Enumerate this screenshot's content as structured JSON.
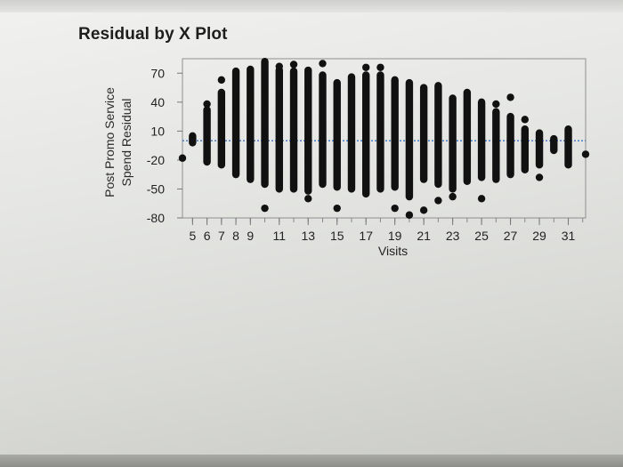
{
  "chart_data": {
    "type": "scatter",
    "title": "Residual by X Plot",
    "xlabel": "Visits",
    "ylabel_lines": [
      "Post Promo Service",
      "Spend Residual"
    ],
    "xlim": [
      4.3,
      32.2
    ],
    "ylim": [
      -80,
      85
    ],
    "x_tick_labels": [
      5,
      6,
      7,
      8,
      9,
      11,
      13,
      15,
      17,
      19,
      21,
      23,
      25,
      27,
      29,
      31
    ],
    "y_ticks": [
      70,
      40,
      10,
      -20,
      -50,
      -80
    ],
    "reference_line_y": 0,
    "reference_line_color": "#3b73c4",
    "point_color": "#111111",
    "columns": [
      {
        "x": 4.3,
        "min": -18,
        "max": -18,
        "outliers": []
      },
      {
        "x": 5,
        "min": -2,
        "max": 5,
        "outliers": []
      },
      {
        "x": 6,
        "min": -22,
        "max": 32,
        "outliers": [
          38
        ]
      },
      {
        "x": 7,
        "min": -25,
        "max": 50,
        "outliers": [
          63
        ]
      },
      {
        "x": 8,
        "min": -35,
        "max": 72,
        "outliers": []
      },
      {
        "x": 9,
        "min": -40,
        "max": 74,
        "outliers": []
      },
      {
        "x": 10,
        "min": -45,
        "max": 82,
        "outliers": [
          -70
        ]
      },
      {
        "x": 11,
        "min": -50,
        "max": 73,
        "outliers": [
          77
        ]
      },
      {
        "x": 12,
        "min": -50,
        "max": 72,
        "outliers": [
          79
        ]
      },
      {
        "x": 13,
        "min": -52,
        "max": 73,
        "outliers": [
          -60
        ]
      },
      {
        "x": 14,
        "min": -45,
        "max": 68,
        "outliers": [
          80
        ]
      },
      {
        "x": 15,
        "min": -48,
        "max": 60,
        "outliers": [
          -70
        ]
      },
      {
        "x": 16,
        "min": -50,
        "max": 66,
        "outliers": []
      },
      {
        "x": 17,
        "min": -55,
        "max": 68,
        "outliers": [
          76
        ]
      },
      {
        "x": 18,
        "min": -50,
        "max": 68,
        "outliers": [
          76
        ]
      },
      {
        "x": 19,
        "min": -48,
        "max": 63,
        "outliers": [
          -70
        ]
      },
      {
        "x": 20,
        "min": -58,
        "max": 60,
        "outliers": [
          -77
        ]
      },
      {
        "x": 21,
        "min": -40,
        "max": 55,
        "outliers": [
          -72
        ]
      },
      {
        "x": 22,
        "min": -45,
        "max": 57,
        "outliers": [
          -62
        ]
      },
      {
        "x": 23,
        "min": -50,
        "max": 44,
        "outliers": [
          -58
        ]
      },
      {
        "x": 24,
        "min": -42,
        "max": 50,
        "outliers": []
      },
      {
        "x": 25,
        "min": -38,
        "max": 40,
        "outliers": [
          -60
        ]
      },
      {
        "x": 26,
        "min": -40,
        "max": 30,
        "outliers": [
          38
        ]
      },
      {
        "x": 27,
        "min": -35,
        "max": 25,
        "outliers": [
          45
        ]
      },
      {
        "x": 28,
        "min": -30,
        "max": 12,
        "outliers": [
          22
        ]
      },
      {
        "x": 29,
        "min": -25,
        "max": 8,
        "outliers": [
          -38
        ]
      },
      {
        "x": 30,
        "min": -10,
        "max": 2,
        "outliers": []
      },
      {
        "x": 31,
        "min": -25,
        "max": 12,
        "outliers": []
      },
      {
        "x": 32.2,
        "min": -14,
        "max": -14,
        "outliers": []
      }
    ]
  }
}
